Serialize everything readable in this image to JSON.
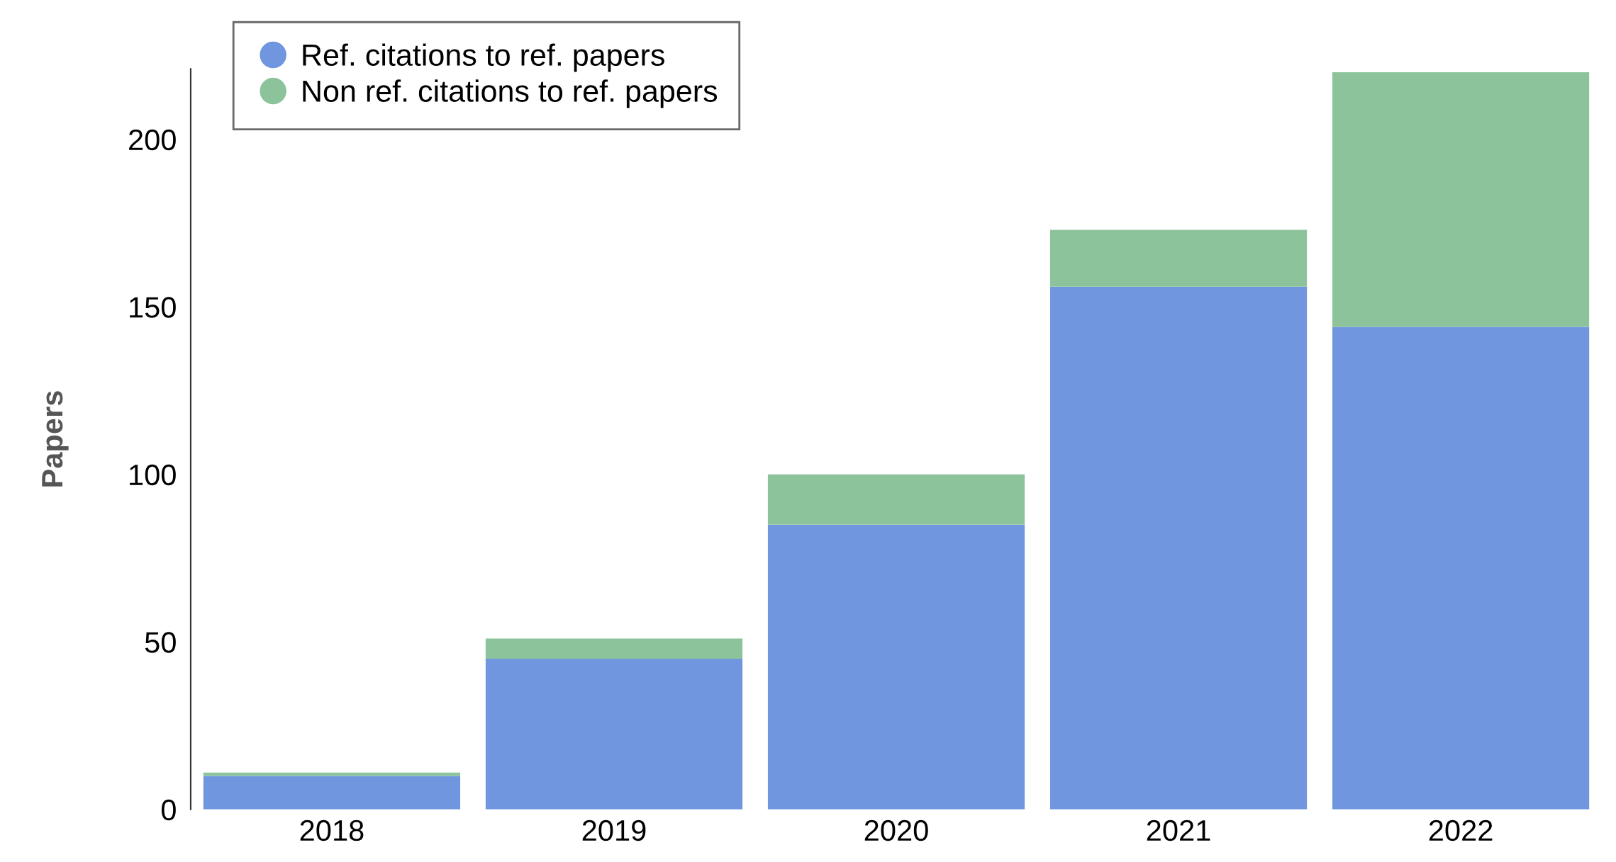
{
  "chart_data": {
    "type": "bar",
    "stacked": true,
    "ylabel": "Papers",
    "categories": [
      "2018",
      "2019",
      "2020",
      "2021",
      "2022"
    ],
    "series": [
      {
        "name": "Ref. citations to ref. papers",
        "color": "#6f96df",
        "values": [
          10,
          45,
          85,
          156,
          144
        ]
      },
      {
        "name": "Non ref. citations to ref. papers",
        "color": "#8dc39b",
        "values": [
          1,
          6,
          15,
          17,
          76
        ]
      }
    ],
    "ylim": [
      0,
      221
    ],
    "yticks": [
      0,
      50,
      100,
      150,
      200
    ],
    "grid": false,
    "legend": "top left"
  }
}
